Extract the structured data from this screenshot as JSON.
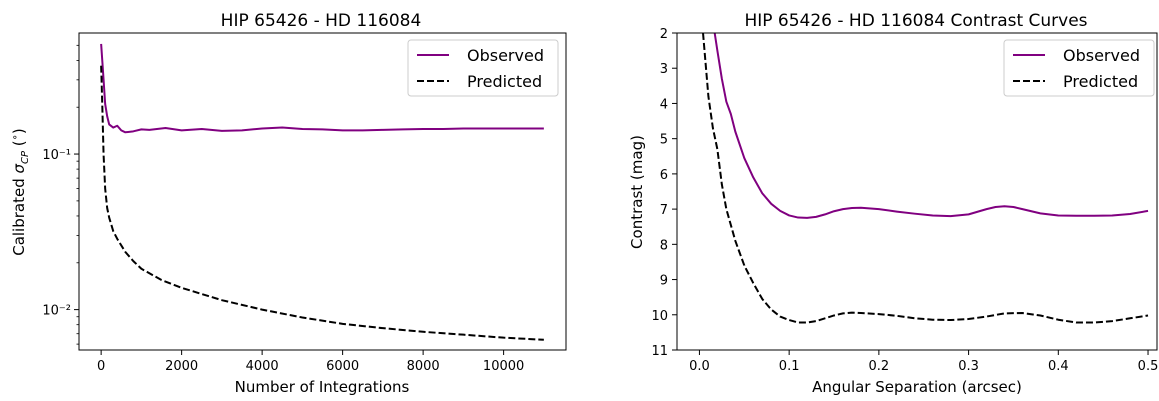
{
  "chart_data": [
    {
      "type": "line",
      "title": "HIP 65426 - HD 116084",
      "xlabel": "Number of Integrations",
      "ylabel": "Calibrated σ_CP (°)",
      "yscale": "log",
      "xlim": [
        -550,
        11550
      ],
      "ylim": [
        0.0055,
        0.6
      ],
      "x_ticks": [
        0,
        2000,
        4000,
        6000,
        8000,
        10000
      ],
      "x_tick_labels": [
        "0",
        "2000",
        "4000",
        "6000",
        "8000",
        "10000"
      ],
      "y_ticks": [
        0.01,
        0.1
      ],
      "y_tick_labels": [
        "10⁻²",
        "10⁻¹"
      ],
      "legend_position": "top-right",
      "series": [
        {
          "name": "Observed",
          "color": "#800080",
          "style": "solid",
          "x": [
            0,
            50,
            100,
            150,
            200,
            300,
            400,
            500,
            600,
            800,
            1000,
            1200,
            1600,
            2000,
            2500,
            3000,
            3500,
            4000,
            4500,
            5000,
            5500,
            6000,
            6500,
            7000,
            7500,
            8000,
            8500,
            9000,
            9500,
            10000,
            10500,
            11000
          ],
          "y": [
            0.51,
            0.33,
            0.21,
            0.175,
            0.155,
            0.148,
            0.152,
            0.142,
            0.138,
            0.14,
            0.144,
            0.143,
            0.147,
            0.142,
            0.145,
            0.141,
            0.142,
            0.146,
            0.148,
            0.145,
            0.144,
            0.142,
            0.142,
            0.143,
            0.144,
            0.145,
            0.145,
            0.146,
            0.146,
            0.146,
            0.146,
            0.146
          ]
        },
        {
          "name": "Predicted",
          "color": "#000000",
          "style": "dashed",
          "x": [
            0,
            30,
            60,
            100,
            150,
            200,
            300,
            400,
            600,
            800,
            1000,
            1500,
            2000,
            3000,
            4000,
            5000,
            6000,
            7000,
            8000,
            9000,
            10000,
            11000
          ],
          "y": [
            0.37,
            0.2,
            0.1,
            0.06,
            0.045,
            0.039,
            0.032,
            0.0285,
            0.0235,
            0.0205,
            0.0183,
            0.0155,
            0.0138,
            0.0115,
            0.01,
            0.0089,
            0.0081,
            0.0076,
            0.0072,
            0.0069,
            0.0066,
            0.0064
          ]
        }
      ]
    },
    {
      "type": "line",
      "title": "HIP 65426 - HD 116084 Contrast Curves",
      "xlabel": "Angular Separation (arcsec)",
      "ylabel": "Contrast (mag)",
      "y_inverted": true,
      "xlim": [
        -0.025,
        0.51
      ],
      "ylim": [
        11,
        2
      ],
      "x_ticks": [
        0.0,
        0.1,
        0.2,
        0.3,
        0.4,
        0.5
      ],
      "x_tick_labels": [
        "0.0",
        "0.1",
        "0.2",
        "0.3",
        "0.4",
        "0.5"
      ],
      "y_ticks": [
        2,
        3,
        4,
        5,
        6,
        7,
        8,
        9,
        10,
        11
      ],
      "y_tick_labels": [
        "2",
        "3",
        "4",
        "5",
        "6",
        "7",
        "8",
        "9",
        "10",
        "11"
      ],
      "legend_position": "top-right",
      "series": [
        {
          "name": "Observed",
          "color": "#800080",
          "style": "solid",
          "x": [
            0.017,
            0.02,
            0.025,
            0.03,
            0.035,
            0.04,
            0.05,
            0.06,
            0.07,
            0.08,
            0.09,
            0.1,
            0.11,
            0.12,
            0.13,
            0.14,
            0.15,
            0.16,
            0.17,
            0.18,
            0.2,
            0.22,
            0.24,
            0.26,
            0.28,
            0.3,
            0.32,
            0.33,
            0.34,
            0.35,
            0.36,
            0.38,
            0.4,
            0.42,
            0.44,
            0.46,
            0.48,
            0.5
          ],
          "y": [
            2.0,
            2.5,
            3.3,
            3.95,
            4.3,
            4.8,
            5.55,
            6.1,
            6.55,
            6.85,
            7.05,
            7.18,
            7.24,
            7.25,
            7.22,
            7.15,
            7.06,
            7.0,
            6.97,
            6.96,
            7.0,
            7.07,
            7.13,
            7.18,
            7.2,
            7.15,
            7.0,
            6.94,
            6.92,
            6.94,
            7.0,
            7.12,
            7.18,
            7.19,
            7.19,
            7.18,
            7.14,
            7.05
          ]
        },
        {
          "name": "Predicted",
          "color": "#000000",
          "style": "dashed",
          "x": [
            0.004,
            0.006,
            0.01,
            0.015,
            0.02,
            0.025,
            0.03,
            0.04,
            0.05,
            0.06,
            0.07,
            0.08,
            0.09,
            0.1,
            0.11,
            0.12,
            0.13,
            0.14,
            0.15,
            0.16,
            0.17,
            0.18,
            0.2,
            0.22,
            0.24,
            0.26,
            0.28,
            0.3,
            0.32,
            0.34,
            0.36,
            0.38,
            0.4,
            0.42,
            0.44,
            0.46,
            0.48,
            0.5
          ],
          "y": [
            2.0,
            2.6,
            3.8,
            4.7,
            5.3,
            6.3,
            7.0,
            7.9,
            8.6,
            9.1,
            9.55,
            9.85,
            10.05,
            10.15,
            10.22,
            10.22,
            10.18,
            10.1,
            10.02,
            9.96,
            9.94,
            9.95,
            9.98,
            10.03,
            10.1,
            10.14,
            10.15,
            10.12,
            10.05,
            9.96,
            9.95,
            10.02,
            10.14,
            10.22,
            10.22,
            10.18,
            10.1,
            10.02
          ]
        }
      ]
    }
  ]
}
